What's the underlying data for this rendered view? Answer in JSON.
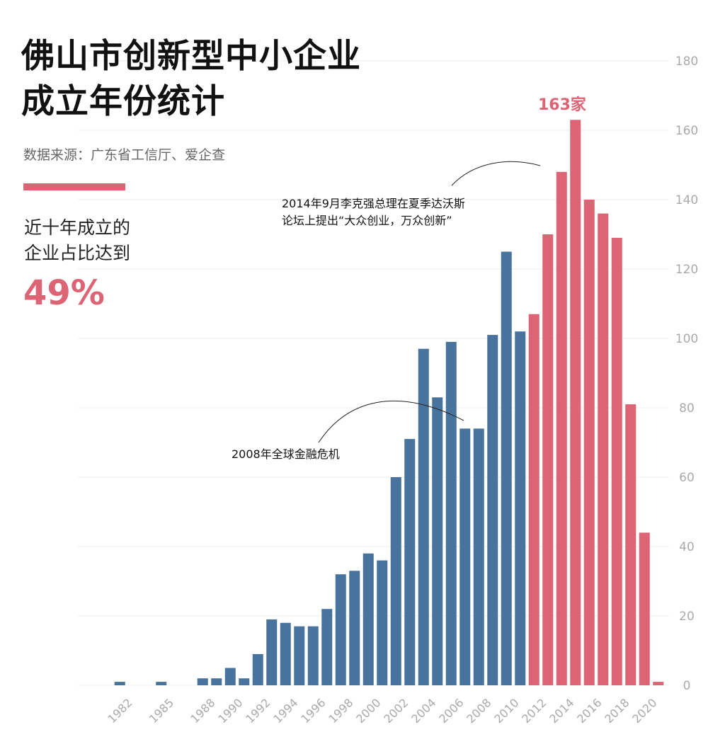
{
  "header": {
    "title_line1": "佛山市创新型中小企业",
    "title_line2": "成立年份统计",
    "source": "数据来源：广东省工信厅、爱企查"
  },
  "highlight": {
    "line1": "近十年成立的",
    "line2": "企业占比达到",
    "value": "49%"
  },
  "annotations": {
    "crisis_2008": "2008年全球金融危机",
    "speech_line1": "2014年9月李克强总理在夏季达沃斯",
    "speech_line2": "论坛上提出“大众创业，万众创新”",
    "peak_label": "163家"
  },
  "colors": {
    "before_2012": "#48739c",
    "from_2012": "#dc6474",
    "axis_text": "#aaaaaa",
    "grid": "#eeeeee"
  },
  "chart_data": {
    "type": "bar",
    "title": "佛山市创新型中小企业成立年份统计",
    "xlabel": "",
    "ylabel": "",
    "ylim": [
      0,
      180
    ],
    "yticks": [
      0,
      20,
      40,
      60,
      80,
      100,
      120,
      140,
      160,
      180
    ],
    "y_axis_side": "right",
    "grid": true,
    "xtick_labels": [
      "1982",
      "1985",
      "1988",
      "1990",
      "1992",
      "1994",
      "1996",
      "1998",
      "2000",
      "2002",
      "2004",
      "2006",
      "2008",
      "2010",
      "2012",
      "2014",
      "2016",
      "2018",
      "2020"
    ],
    "x": [
      1982,
      1985,
      1988,
      1989,
      1990,
      1991,
      1992,
      1993,
      1994,
      1995,
      1996,
      1997,
      1998,
      1999,
      2000,
      2001,
      2002,
      2003,
      2004,
      2005,
      2006,
      2007,
      2008,
      2009,
      2010,
      2011,
      2012,
      2013,
      2014,
      2015,
      2016,
      2017,
      2018,
      2019,
      2020,
      2021
    ],
    "values": [
      1,
      1,
      2,
      2,
      5,
      2,
      9,
      19,
      18,
      17,
      17,
      22,
      32,
      33,
      38,
      36,
      60,
      71,
      97,
      83,
      99,
      74,
      74,
      101,
      125,
      102,
      107,
      130,
      148,
      163,
      140,
      136,
      129,
      81,
      44,
      1
    ],
    "highlight_from_year": 2012
  }
}
